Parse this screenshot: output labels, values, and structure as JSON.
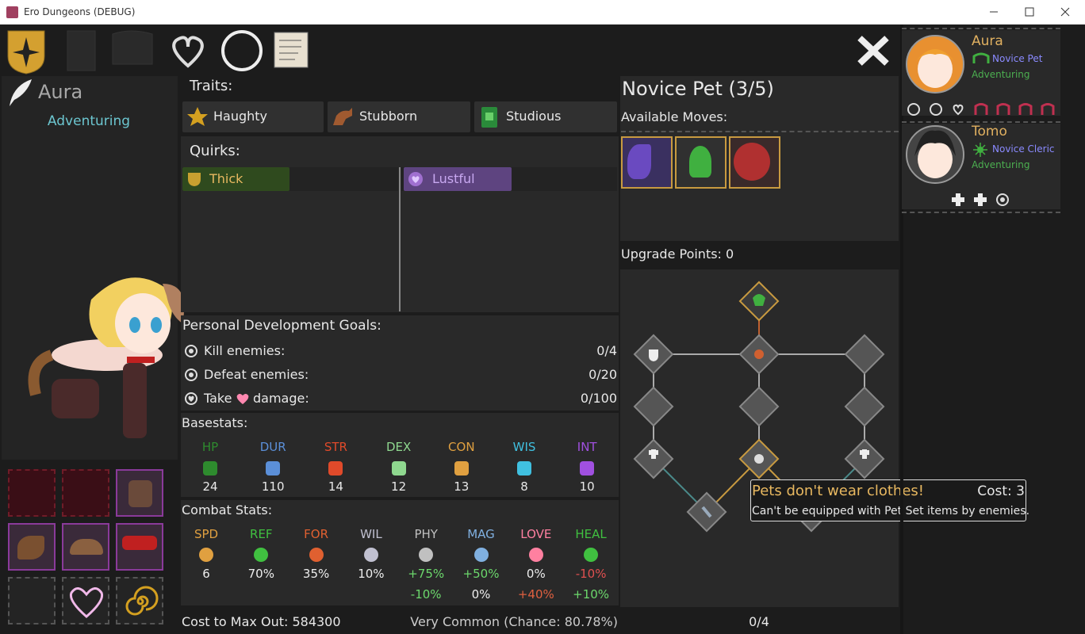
{
  "window": {
    "title": "Ero Dungeons (DEBUG)"
  },
  "character": {
    "name": "Aura",
    "status": "Adventuring"
  },
  "traits": {
    "title": "Traits:",
    "items": [
      "Haughty",
      "Stubborn",
      "Studious"
    ]
  },
  "quirks": {
    "title": "Quirks:",
    "positive": [
      "Thick"
    ],
    "negative": [
      "Lustful"
    ]
  },
  "goals": {
    "title": "Personal Development Goals:",
    "items": [
      {
        "label": "Kill enemies:",
        "progress": "0/4"
      },
      {
        "label": "Defeat enemies:",
        "progress": "0/20"
      },
      {
        "label_before": "Take",
        "label_after": "damage:",
        "progress": "0/100"
      }
    ]
  },
  "basestats": {
    "title": "Basestats:",
    "stats": [
      {
        "name": "HP",
        "value": 24
      },
      {
        "name": "DUR",
        "value": 110
      },
      {
        "name": "STR",
        "value": 14
      },
      {
        "name": "DEX",
        "value": 12
      },
      {
        "name": "CON",
        "value": 13
      },
      {
        "name": "WIS",
        "value": 8
      },
      {
        "name": "INT",
        "value": 10
      }
    ]
  },
  "combat_stats": {
    "title": "Combat Stats:",
    "stats": [
      {
        "name": "SPD",
        "value": "6"
      },
      {
        "name": "REF",
        "value": "70%"
      },
      {
        "name": "FOR",
        "value": "35%"
      },
      {
        "name": "WIL",
        "value": "10%"
      },
      {
        "name": "PHY",
        "value": "+75%",
        "secondary": "-10%"
      },
      {
        "name": "MAG",
        "value": "+50%",
        "secondary": "0%"
      },
      {
        "name": "LOVE",
        "value": "0%",
        "secondary": "+40%"
      },
      {
        "name": "HEAL",
        "value": "-10%",
        "secondary": "+10%"
      }
    ]
  },
  "footer": {
    "cost": "Cost to Max Out: 584300",
    "rarity": "Very Common (Chance: 80.78%)"
  },
  "class_panel": {
    "title": "Novice Pet (3/5)",
    "moves_label": "Available Moves:",
    "upgrade_points": "Upgrade Points: 0",
    "progress": "0/4"
  },
  "tooltip": {
    "title": "Pets don't wear clothes!",
    "cost": "Cost: 3",
    "description": "Can't be equipped with Pet Set items by enemies."
  },
  "party": [
    {
      "name": "Aura",
      "class": "Novice Pet",
      "status": "Adventuring"
    },
    {
      "name": "Tomo",
      "class": "Novice Cleric",
      "status": "Adventuring"
    }
  ]
}
